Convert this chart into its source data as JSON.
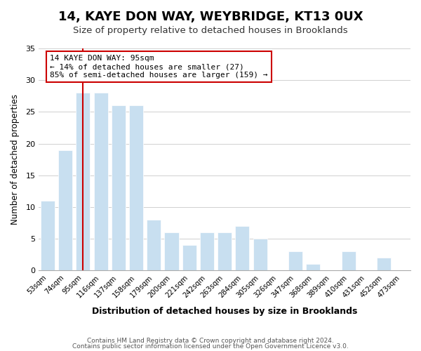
{
  "title": "14, KAYE DON WAY, WEYBRIDGE, KT13 0UX",
  "subtitle": "Size of property relative to detached houses in Brooklands",
  "xlabel": "Distribution of detached houses by size in Brooklands",
  "ylabel": "Number of detached properties",
  "categories": [
    "53sqm",
    "74sqm",
    "95sqm",
    "116sqm",
    "137sqm",
    "158sqm",
    "179sqm",
    "200sqm",
    "221sqm",
    "242sqm",
    "263sqm",
    "284sqm",
    "305sqm",
    "326sqm",
    "347sqm",
    "368sqm",
    "389sqm",
    "410sqm",
    "431sqm",
    "452sqm",
    "473sqm"
  ],
  "values": [
    11,
    19,
    28,
    28,
    26,
    26,
    8,
    6,
    4,
    6,
    6,
    7,
    5,
    0,
    3,
    1,
    0,
    3,
    0,
    2,
    0
  ],
  "bar_color": "#c8dff0",
  "vline_x": 2,
  "vline_color": "#cc0000",
  "ylim": [
    0,
    35
  ],
  "yticks": [
    0,
    5,
    10,
    15,
    20,
    25,
    30,
    35
  ],
  "annotation_title": "14 KAYE DON WAY: 95sqm",
  "annotation_line1": "← 14% of detached houses are smaller (27)",
  "annotation_line2": "85% of semi-detached houses are larger (159) →",
  "annotation_box_color": "#ffffff",
  "annotation_box_edge": "#cc0000",
  "footer1": "Contains HM Land Registry data © Crown copyright and database right 2024.",
  "footer2": "Contains public sector information licensed under the Open Government Licence v3.0."
}
